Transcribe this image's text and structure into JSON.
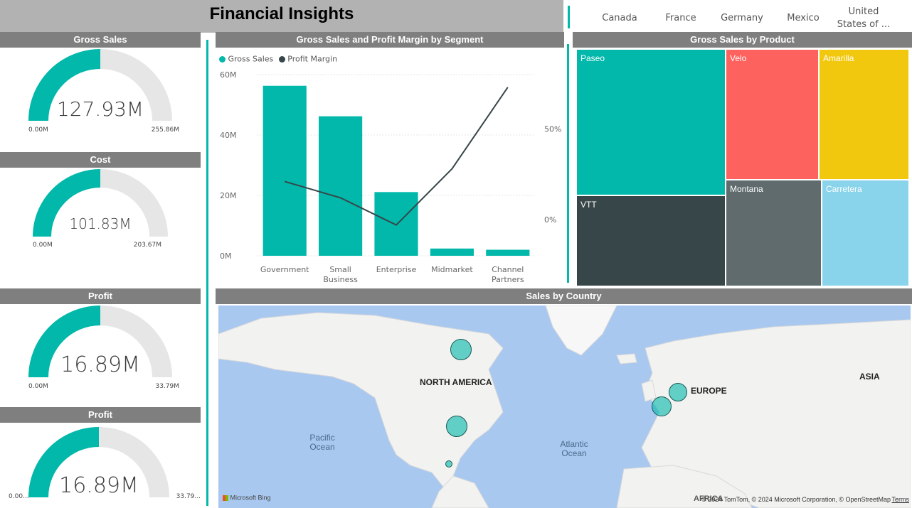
{
  "report_title": "Financial Insights",
  "slicer": {
    "items": [
      "Canada",
      "France",
      "Germany",
      "Mexico",
      "United States of ..."
    ]
  },
  "gauges": [
    {
      "title": "Gross Sales",
      "value": "127.93M",
      "min": "0.00M",
      "max": "255.86M",
      "fill_fraction": 0.5
    },
    {
      "title": "Cost",
      "value": "101.83M",
      "min": "0.00M",
      "max": "203.67M",
      "fill_fraction": 0.5
    },
    {
      "title": "Profit",
      "value": "16.89M",
      "min": "0.00M",
      "max": "33.79M",
      "fill_fraction": 0.5
    },
    {
      "title": "Profit",
      "value": "16.89M",
      "min": "0.00...",
      "max": "33.79...",
      "fill_fraction": 0.5
    }
  ],
  "colors": {
    "teal": "#01b8aa",
    "dark": "#374649",
    "red": "#fd625e",
    "yellow": "#f2c80f",
    "grey": "#5f6b6d",
    "lightblue": "#8ad4eb",
    "gauge_bg": "#e6e6e6",
    "header_bg": "#7f7f7f"
  },
  "combo_chart": {
    "title": "Gross Sales and Profit Margin by Segment",
    "legend": [
      "Gross Sales",
      "Profit Margin"
    ]
  },
  "chart_data": {
    "type": "bar",
    "title": "Gross Sales and Profit Margin by Segment",
    "categories": [
      "Government",
      "Small Business",
      "Enterprise",
      "Midmarket",
      "Channel Partners"
    ],
    "category_lines": [
      [
        "Government"
      ],
      [
        "Small",
        "Business"
      ],
      [
        "Enterprise"
      ],
      [
        "Midmarket"
      ],
      [
        "Channel",
        "Partners"
      ]
    ],
    "series": [
      {
        "name": "Gross Sales",
        "type": "bar",
        "values": [
          56.3,
          46.2,
          21.1,
          2.4,
          2.0
        ],
        "axis": "left"
      },
      {
        "name": "Profit Margin",
        "type": "line",
        "values": [
          21,
          12,
          -3,
          28,
          73
        ],
        "axis": "right"
      }
    ],
    "y_left_ticks": [
      "0M",
      "20M",
      "40M",
      "60M"
    ],
    "y_left_range": [
      0,
      60
    ],
    "y_right_ticks": [
      "0%",
      "50%"
    ],
    "y_right_range": [
      -20,
      80
    ]
  },
  "treemap": {
    "title": "Gross Sales by Product",
    "products": [
      "Paseo",
      "Velo",
      "Amarilla",
      "VTT",
      "Montana",
      "Carretera"
    ]
  },
  "map": {
    "title": "Sales by Country",
    "labels": {
      "north_america": "NORTH AMERICA",
      "europe": "EUROPE",
      "asia": "ASIA",
      "africa": "AFRICA",
      "pacific_ocean": "Pacific Ocean",
      "atlantic_ocean": "Atlantic Ocean"
    },
    "bubbles": [
      {
        "country": "Canada"
      },
      {
        "country": "United States of America"
      },
      {
        "country": "Mexico"
      },
      {
        "country": "France"
      },
      {
        "country": "Germany"
      }
    ],
    "bing_logo": "Microsoft Bing",
    "attribution": "© 2024 TomTom, © 2024 Microsoft Corporation, © OpenStreetMap",
    "terms": "Terms"
  }
}
